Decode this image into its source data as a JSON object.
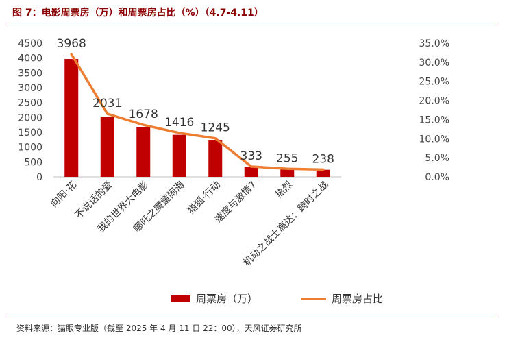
{
  "header": {
    "title": "图 7：电影周票房（万）和周票房占比（%）（4.7-4.11）"
  },
  "footer": {
    "source": "资料来源：猫眼专业版（截至 2025 年 4 月 11 日 22：00），天风证券研究所"
  },
  "chart_data": {
    "type": "bar",
    "categories": [
      "向阳·花",
      "不说话的爱",
      "我的世界大电影",
      "哪吒之魔童闹海",
      "猎狐·行动",
      "速度与激情7",
      "热烈",
      "机动之战士高达：跨时之战"
    ],
    "series": [
      {
        "name": "周票房（万）",
        "type": "bar",
        "axis": "left",
        "values": [
          3968,
          2031,
          1678,
          1416,
          1245,
          333,
          255,
          238
        ]
      },
      {
        "name": "周票房占比",
        "type": "line",
        "axis": "right",
        "values": [
          32.1,
          16.5,
          13.6,
          11.5,
          10.1,
          2.7,
          2.1,
          1.9
        ]
      }
    ],
    "y_left": {
      "min": 0,
      "max": 4500,
      "ticks": [
        "0",
        "500",
        "1000",
        "1500",
        "2000",
        "2500",
        "3000",
        "3500",
        "4000",
        "4500"
      ]
    },
    "y_right": {
      "min": 0,
      "max": 35,
      "ticks": [
        "0.0%",
        "5.0%",
        "10.0%",
        "15.0%",
        "20.0%",
        "25.0%",
        "30.0%",
        "35.0%"
      ]
    },
    "data_labels": [
      "3968",
      "2031",
      "1678",
      "1416",
      "1245",
      "333",
      "255",
      "238"
    ],
    "colors": {
      "bar": "#c00000",
      "line": "#ed7d31"
    },
    "legend": [
      "周票房（万）",
      "周票房占比"
    ],
    "legend_position": "bottom",
    "grid": false
  }
}
